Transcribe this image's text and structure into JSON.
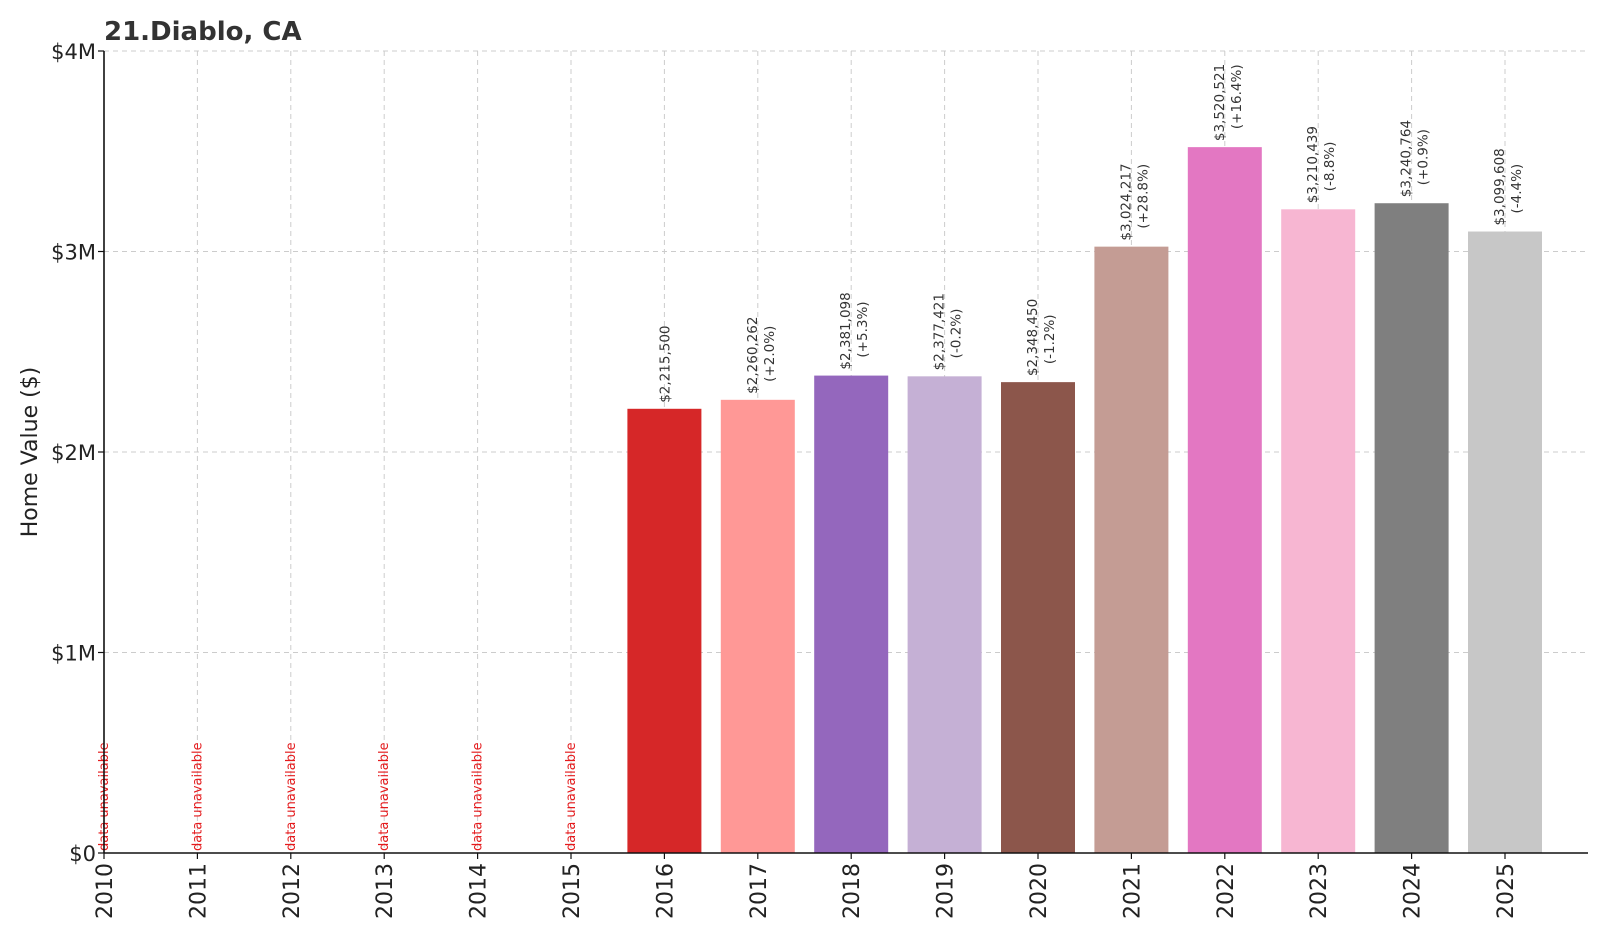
{
  "chart_data": {
    "type": "bar",
    "title": "21.Diablo, CA",
    "ylabel": "Home Value ($)",
    "xlabel": "",
    "ylim": [
      0,
      4000000
    ],
    "yticks": [
      0,
      1000000,
      2000000,
      3000000,
      4000000
    ],
    "ytick_labels": [
      "$0",
      "$1M",
      "$2M",
      "$3M",
      "$4M"
    ],
    "grid": true,
    "categories": [
      "2010",
      "2011",
      "2012",
      "2013",
      "2014",
      "2015",
      "2016",
      "2017",
      "2018",
      "2019",
      "2020",
      "2021",
      "2022",
      "2023",
      "2024",
      "2025"
    ],
    "values": [
      null,
      null,
      null,
      null,
      null,
      null,
      2215500,
      2260262,
      2381098,
      2377421,
      2348450,
      3024217,
      3520521,
      3210439,
      3240764,
      3099608
    ],
    "value_labels": [
      "",
      "",
      "",
      "",
      "",
      "",
      "$2,215,500",
      "$2,260,262",
      "$2,381,098",
      "$2,377,421",
      "$2,348,450",
      "$3,024,217",
      "$3,520,521",
      "$3,210,439",
      "$3,240,764",
      "$3,099,608"
    ],
    "change_labels": [
      "",
      "",
      "",
      "",
      "",
      "",
      "",
      "(+2.0%)",
      "(+5.3%)",
      "(-0.2%)",
      "(-1.2%)",
      "(+28.8%)",
      "(+16.4%)",
      "(-8.8%)",
      "(+0.9%)",
      "(-4.4%)"
    ],
    "unavailable_label": "data unavailable",
    "colors": [
      "#1f77b4",
      "#aec7e8",
      "#ff7f0e",
      "#ffbb78",
      "#2ca02c",
      "#98df8a",
      "#d62728",
      "#ff9896",
      "#9467bd",
      "#c5b0d5",
      "#8c564b",
      "#c49c94",
      "#e377c2",
      "#f7b6d2",
      "#7f7f7f",
      "#c7c7c7"
    ],
    "unavailable_color": "#e41a1c"
  }
}
